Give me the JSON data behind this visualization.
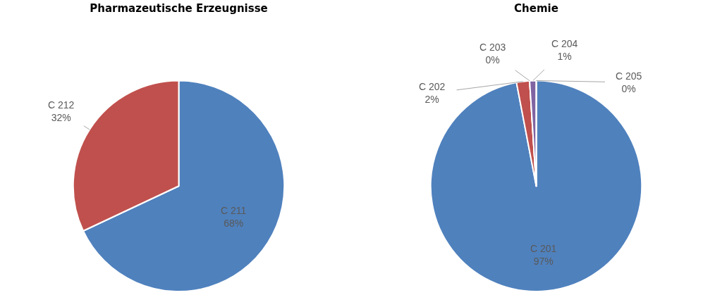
{
  "chart_data": [
    {
      "type": "pie",
      "title": "Pharmazeutische Erzeugnisse",
      "categories": [
        "C 211",
        "C 212"
      ],
      "values": [
        68,
        32
      ],
      "value_labels": [
        "68%",
        "32%"
      ],
      "colors": [
        "#4f81bd",
        "#c0504d"
      ]
    },
    {
      "type": "pie",
      "title": "Chemie",
      "categories": [
        "C 201",
        "C 202",
        "C 203",
        "C 204",
        "C 205"
      ],
      "values": [
        97,
        2,
        0,
        1,
        0
      ],
      "value_labels": [
        "97%",
        "2%",
        "0%",
        "1%",
        "0%"
      ],
      "colors": [
        "#4f81bd",
        "#c0504d",
        "#9bbb59",
        "#8064a2",
        "#4bacc6"
      ]
    }
  ]
}
